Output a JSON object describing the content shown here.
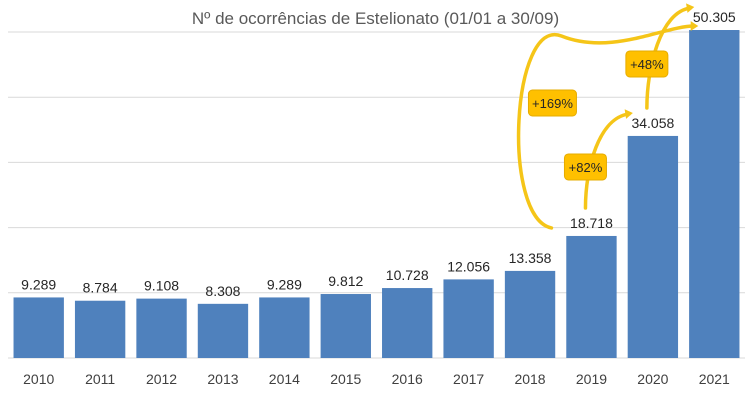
{
  "chart_data": {
    "type": "bar",
    "title": "Nº de ocorrências de Estelionato (01/01 a 30/09)",
    "categories": [
      "2010",
      "2011",
      "2012",
      "2013",
      "2014",
      "2015",
      "2016",
      "2017",
      "2018",
      "2019",
      "2020",
      "2021"
    ],
    "values": [
      9289,
      8784,
      9108,
      8308,
      9289,
      9812,
      10728,
      12056,
      13358,
      18718,
      34058,
      50305
    ],
    "value_labels": [
      "9.289",
      "8.784",
      "9.108",
      "8.308",
      "9.289",
      "9.812",
      "10.728",
      "12.056",
      "13.358",
      "18.718",
      "34.058",
      "50.305"
    ],
    "ylim": [
      0,
      50000
    ],
    "grid": true,
    "bar_color": "#4f81bd",
    "annotations": [
      {
        "label": "+169%",
        "from": "2019",
        "to": "2021"
      },
      {
        "label": "+82%",
        "from": "2019",
        "to": "2020"
      },
      {
        "label": "+48%",
        "from": "2020",
        "to": "2021"
      }
    ],
    "annotation_color": "#ffc000"
  }
}
